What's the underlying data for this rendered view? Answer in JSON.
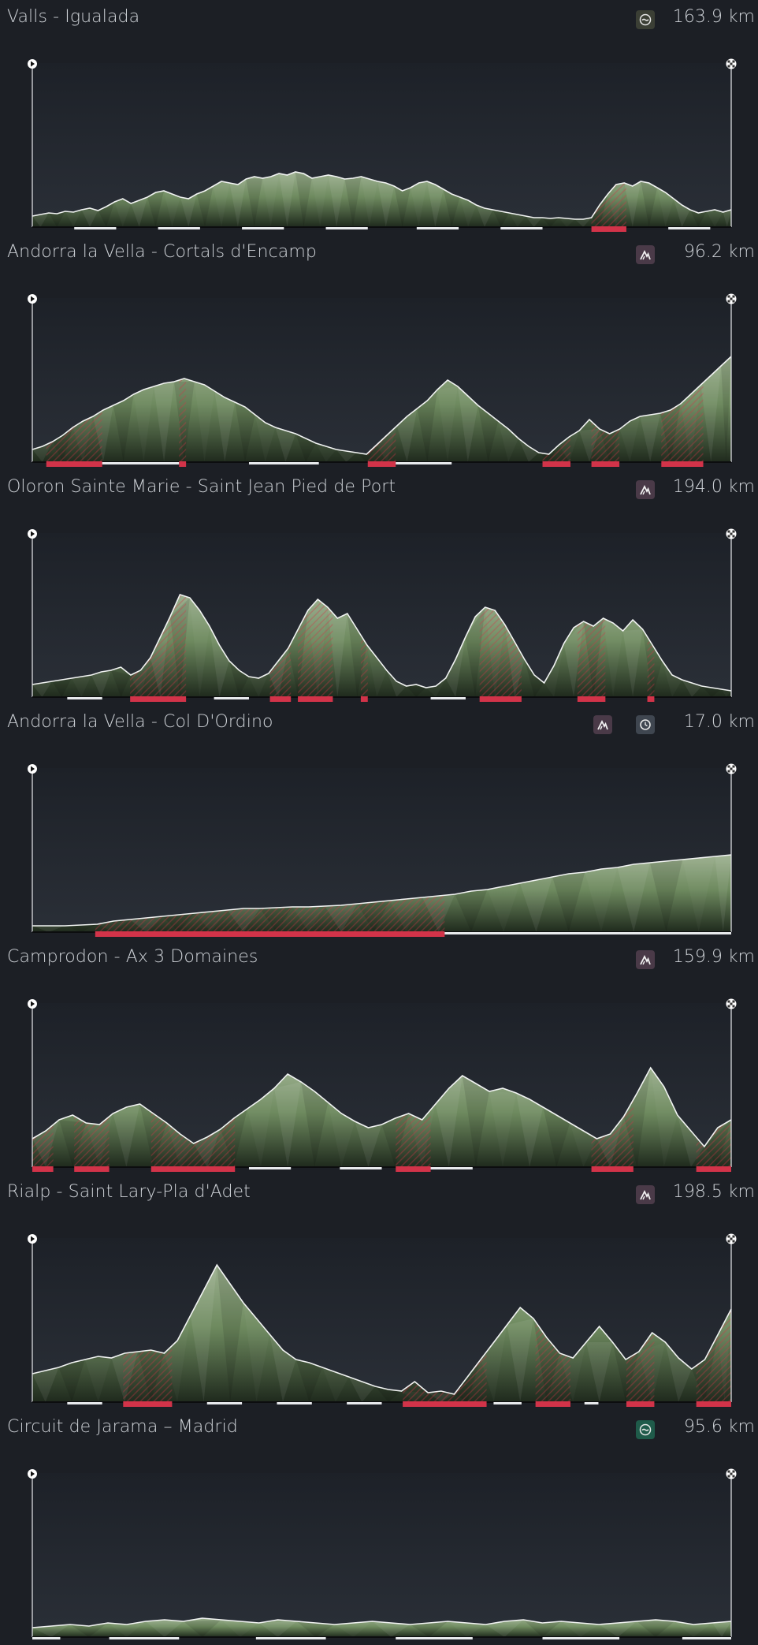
{
  "stages": [
    {
      "title": "Valls - Igualada",
      "distance": "163.9 km",
      "badges": [
        {
          "icon": "flat-stage-icon",
          "color": "#3b3f35"
        }
      ],
      "profile": [
        8,
        10,
        12,
        11,
        14,
        13,
        16,
        18,
        15,
        20,
        26,
        30,
        24,
        28,
        32,
        38,
        40,
        36,
        32,
        30,
        36,
        40,
        46,
        52,
        50,
        48,
        55,
        58,
        56,
        58,
        62,
        60,
        64,
        62,
        56,
        58,
        60,
        58,
        55,
        56,
        58,
        55,
        52,
        50,
        46,
        40,
        44,
        50,
        52,
        48,
        42,
        36,
        32,
        28,
        22,
        18,
        16,
        14,
        12,
        10,
        8,
        6,
        6,
        5,
        6,
        5,
        4,
        4,
        6,
        22,
        36,
        48,
        50,
        46,
        52,
        50,
        44,
        38,
        30,
        22,
        16,
        12,
        14,
        16,
        13,
        16
      ],
      "segments": [
        {
          "from": 0.06,
          "to": 0.12,
          "color": "white"
        },
        {
          "from": 0.18,
          "to": 0.24,
          "color": "white"
        },
        {
          "from": 0.3,
          "to": 0.36,
          "color": "white"
        },
        {
          "from": 0.42,
          "to": 0.48,
          "color": "white"
        },
        {
          "from": 0.55,
          "to": 0.61,
          "color": "white"
        },
        {
          "from": 0.67,
          "to": 0.73,
          "color": "white"
        },
        {
          "from": 0.8,
          "to": 0.85,
          "color": "red"
        },
        {
          "from": 0.91,
          "to": 0.97,
          "color": "white"
        }
      ]
    },
    {
      "title": "Andorra la Vella - Cortals d'Encamp",
      "distance": "96.2 km",
      "badges": [
        {
          "icon": "mountain-stage-icon",
          "color": "#4a3a48"
        }
      ],
      "profile": [
        10,
        14,
        20,
        28,
        38,
        46,
        52,
        60,
        66,
        72,
        80,
        86,
        90,
        94,
        96,
        100,
        96,
        92,
        84,
        76,
        70,
        64,
        54,
        44,
        38,
        34,
        30,
        24,
        18,
        14,
        10,
        8,
        6,
        4,
        16,
        28,
        40,
        52,
        62,
        72,
        86,
        98,
        90,
        78,
        66,
        56,
        46,
        36,
        24,
        14,
        6,
        4,
        16,
        26,
        34,
        48,
        36,
        30,
        36,
        46,
        52,
        54,
        56,
        60,
        68,
        80,
        92,
        104,
        116,
        128
      ],
      "segments": [
        {
          "from": 0.02,
          "to": 0.1,
          "color": "red"
        },
        {
          "from": 0.1,
          "to": 0.21,
          "color": "white"
        },
        {
          "from": 0.21,
          "to": 0.22,
          "color": "red"
        },
        {
          "from": 0.31,
          "to": 0.41,
          "color": "white"
        },
        {
          "from": 0.48,
          "to": 0.52,
          "color": "red"
        },
        {
          "from": 0.52,
          "to": 0.6,
          "color": "white"
        },
        {
          "from": 0.73,
          "to": 0.77,
          "color": "red"
        },
        {
          "from": 0.8,
          "to": 0.84,
          "color": "red"
        },
        {
          "from": 0.9,
          "to": 0.96,
          "color": "red"
        }
      ]
    },
    {
      "title": "Oloron Sainte Marie - Saint Jean Pied de Port",
      "distance": "194.0 km",
      "badges": [
        {
          "icon": "mountain-stage-icon",
          "color": "#4a3a48"
        }
      ],
      "profile": [
        10,
        12,
        14,
        16,
        18,
        20,
        22,
        26,
        28,
        32,
        22,
        28,
        44,
        70,
        96,
        124,
        120,
        104,
        84,
        60,
        40,
        28,
        20,
        18,
        24,
        40,
        56,
        80,
        104,
        118,
        108,
        94,
        100,
        80,
        60,
        44,
        28,
        14,
        8,
        10,
        6,
        8,
        18,
        42,
        70,
        96,
        108,
        104,
        86,
        64,
        42,
        22,
        12,
        34,
        62,
        82,
        90,
        84,
        94,
        88,
        78,
        92,
        80,
        60,
        40,
        22,
        16,
        12,
        8,
        6,
        4,
        2
      ],
      "segments": [
        {
          "from": 0.05,
          "to": 0.1,
          "color": "white"
        },
        {
          "from": 0.14,
          "to": 0.22,
          "color": "red"
        },
        {
          "from": 0.26,
          "to": 0.31,
          "color": "white"
        },
        {
          "from": 0.34,
          "to": 0.37,
          "color": "red"
        },
        {
          "from": 0.38,
          "to": 0.43,
          "color": "red"
        },
        {
          "from": 0.47,
          "to": 0.48,
          "color": "red"
        },
        {
          "from": 0.57,
          "to": 0.62,
          "color": "white"
        },
        {
          "from": 0.64,
          "to": 0.7,
          "color": "red"
        },
        {
          "from": 0.78,
          "to": 0.82,
          "color": "red"
        },
        {
          "from": 0.88,
          "to": 0.89,
          "color": "red"
        }
      ]
    },
    {
      "title": "Andorra la Vella - Col D'Ordino",
      "distance": "17.0 km",
      "badges": [
        {
          "icon": "mountain-stage-icon",
          "color": "#4a3a48"
        },
        {
          "icon": "time-trial-icon",
          "color": "#3f4650"
        }
      ],
      "profile": [
        2,
        2,
        2,
        3,
        4,
        8,
        10,
        12,
        14,
        16,
        18,
        20,
        22,
        24,
        24,
        25,
        26,
        26,
        27,
        28,
        30,
        32,
        34,
        36,
        38,
        40,
        42,
        46,
        48,
        52,
        56,
        60,
        64,
        68,
        70,
        74,
        76,
        80,
        82,
        84,
        86,
        88,
        90,
        92
      ],
      "segments": [
        {
          "from": 0.09,
          "to": 0.59,
          "color": "red"
        },
        {
          "from": 0.59,
          "to": 1.0,
          "color": "white"
        }
      ]
    },
    {
      "title": "Camprodon - Ax 3 Domaines",
      "distance": "159.9 km",
      "badges": [
        {
          "icon": "mountain-stage-icon",
          "color": "#4a3a48"
        }
      ],
      "profile": [
        30,
        40,
        54,
        60,
        50,
        48,
        62,
        70,
        74,
        62,
        50,
        36,
        24,
        32,
        42,
        56,
        68,
        80,
        94,
        112,
        102,
        90,
        76,
        62,
        52,
        44,
        48,
        56,
        62,
        54,
        74,
        94,
        110,
        100,
        90,
        94,
        88,
        80,
        70,
        60,
        50,
        40,
        30,
        36,
        58,
        88,
        120,
        96,
        60,
        40,
        20,
        44,
        54
      ],
      "segments": [
        {
          "from": 0.0,
          "to": 0.03,
          "color": "red"
        },
        {
          "from": 0.06,
          "to": 0.11,
          "color": "red"
        },
        {
          "from": 0.17,
          "to": 0.29,
          "color": "red"
        },
        {
          "from": 0.31,
          "to": 0.37,
          "color": "white"
        },
        {
          "from": 0.44,
          "to": 0.5,
          "color": "white"
        },
        {
          "from": 0.52,
          "to": 0.57,
          "color": "red"
        },
        {
          "from": 0.57,
          "to": 0.63,
          "color": "white"
        },
        {
          "from": 0.8,
          "to": 0.86,
          "color": "red"
        },
        {
          "from": 0.95,
          "to": 1.0,
          "color": "red"
        }
      ]
    },
    {
      "title": "Rialp - Saint Lary-Pla d'Adet",
      "distance": "198.5 km",
      "badges": [
        {
          "icon": "mountain-stage-icon",
          "color": "#4a3a48"
        }
      ],
      "profile": [
        30,
        34,
        38,
        44,
        48,
        52,
        50,
        56,
        58,
        60,
        56,
        72,
        104,
        136,
        168,
        144,
        120,
        100,
        80,
        60,
        48,
        44,
        38,
        32,
        26,
        20,
        14,
        10,
        8,
        20,
        6,
        8,
        4,
        26,
        48,
        70,
        92,
        114,
        100,
        76,
        56,
        50,
        70,
        90,
        70,
        48,
        58,
        82,
        70,
        50,
        36,
        48,
        80,
        112
      ],
      "segments": [
        {
          "from": 0.05,
          "to": 0.1,
          "color": "white"
        },
        {
          "from": 0.13,
          "to": 0.2,
          "color": "red"
        },
        {
          "from": 0.25,
          "to": 0.3,
          "color": "white"
        },
        {
          "from": 0.35,
          "to": 0.4,
          "color": "white"
        },
        {
          "from": 0.45,
          "to": 0.5,
          "color": "white"
        },
        {
          "from": 0.53,
          "to": 0.65,
          "color": "red"
        },
        {
          "from": 0.66,
          "to": 0.7,
          "color": "white"
        },
        {
          "from": 0.72,
          "to": 0.77,
          "color": "red"
        },
        {
          "from": 0.79,
          "to": 0.81,
          "color": "white"
        },
        {
          "from": 0.85,
          "to": 0.89,
          "color": "red"
        },
        {
          "from": 0.95,
          "to": 1.0,
          "color": "red"
        }
      ]
    },
    {
      "title": "Circuit de Jarama – Madrid",
      "distance": "95.6 km",
      "badges": [
        {
          "icon": "flat-stage-icon",
          "color": "#1f5b4a"
        }
      ],
      "profile": [
        6,
        8,
        10,
        8,
        12,
        10,
        14,
        16,
        14,
        18,
        16,
        14,
        12,
        16,
        14,
        12,
        10,
        12,
        14,
        12,
        10,
        12,
        14,
        12,
        10,
        14,
        16,
        12,
        14,
        12,
        10,
        12,
        14,
        16,
        14,
        10,
        12,
        14
      ],
      "segments": [
        {
          "from": 0.0,
          "to": 0.04,
          "color": "white"
        },
        {
          "from": 0.11,
          "to": 0.21,
          "color": "white"
        },
        {
          "from": 0.32,
          "to": 0.42,
          "color": "white"
        },
        {
          "from": 0.52,
          "to": 0.63,
          "color": "white"
        },
        {
          "from": 0.73,
          "to": 0.84,
          "color": "white"
        },
        {
          "from": 0.93,
          "to": 1.0,
          "color": "white"
        }
      ]
    }
  ],
  "colors": {
    "background": "#1c1f25",
    "climb_red": "#d23349",
    "profile_green": "#6e8a5f",
    "baseline_white": "#e8eaed"
  }
}
